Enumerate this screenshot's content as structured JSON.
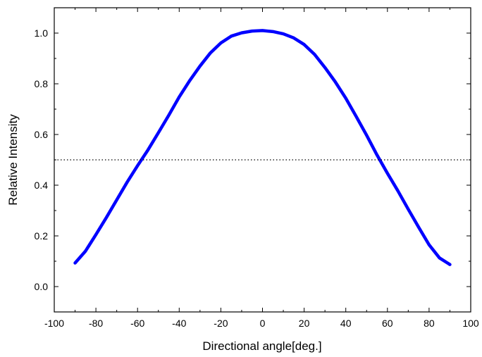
{
  "chart_data": {
    "type": "line",
    "title": "",
    "xlabel": "Directional angle[deg.]",
    "ylabel": "Relative Intensity",
    "xlim": [
      -100,
      100
    ],
    "ylim": [
      -0.1,
      1.1
    ],
    "xticks": [
      -100,
      -80,
      -60,
      -40,
      -20,
      0,
      20,
      40,
      60,
      80,
      100
    ],
    "xtick_labels": [
      "-100",
      "-80",
      "-60",
      "-40",
      "-20",
      "0",
      "20",
      "40",
      "60",
      "80",
      "100"
    ],
    "yticks": [
      0.0,
      0.2,
      0.4,
      0.6,
      0.8,
      1.0
    ],
    "ytick_labels": [
      "0.0",
      "0.2",
      "0.4",
      "0.6",
      "0.8",
      "1.0"
    ],
    "grid": false,
    "series": [
      {
        "color": "#0000ff",
        "style": "solid",
        "x": [
          -90,
          -85,
          -80,
          -75,
          -70,
          -65,
          -60,
          -55,
          -50,
          -45,
          -40,
          -35,
          -30,
          -25,
          -20,
          -15,
          -10,
          -5,
          0,
          5,
          10,
          15,
          20,
          25,
          30,
          35,
          40,
          45,
          50,
          55,
          60,
          65,
          70,
          75,
          80,
          85,
          90
        ],
        "y": [
          0.093,
          0.14,
          0.205,
          0.272,
          0.342,
          0.412,
          0.477,
          0.539,
          0.607,
          0.676,
          0.748,
          0.812,
          0.87,
          0.922,
          0.961,
          0.988,
          1.001,
          1.008,
          1.01,
          1.006,
          0.997,
          0.981,
          0.955,
          0.916,
          0.864,
          0.807,
          0.743,
          0.671,
          0.597,
          0.519,
          0.447,
          0.378,
          0.305,
          0.234,
          0.165,
          0.113,
          0.087
        ]
      },
      {
        "color": "#000000",
        "style": "dotted",
        "x": [
          -100,
          100
        ],
        "y": [
          0.5,
          0.5
        ]
      }
    ]
  }
}
